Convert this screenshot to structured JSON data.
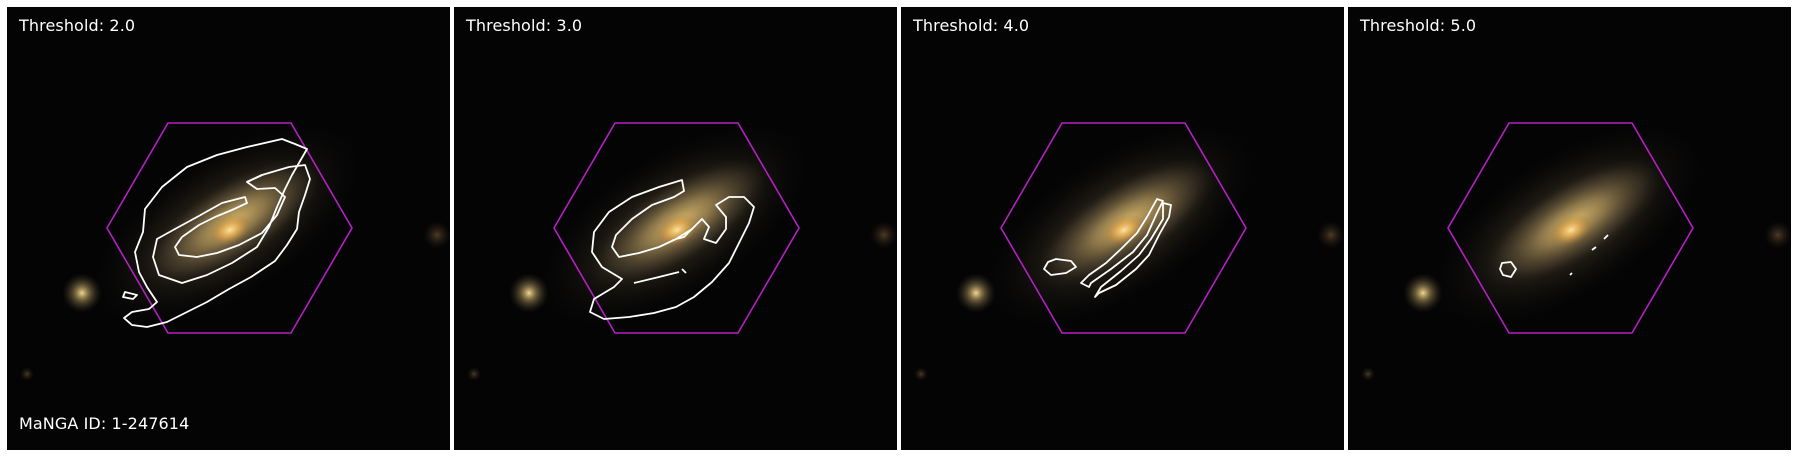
{
  "figure": {
    "colors": {
      "hexagon": "#b51fc4",
      "contour": "#ffffff",
      "background": "#040405",
      "separator": "#ffffff"
    },
    "panels": [
      {
        "threshold_label": "Threshold: 2.0",
        "manga_label": "MaNGA ID: 1-247614"
      },
      {
        "threshold_label": "Threshold: 3.0"
      },
      {
        "threshold_label": "Threshold: 4.0"
      },
      {
        "threshold_label": "Threshold: 5.0"
      }
    ]
  }
}
